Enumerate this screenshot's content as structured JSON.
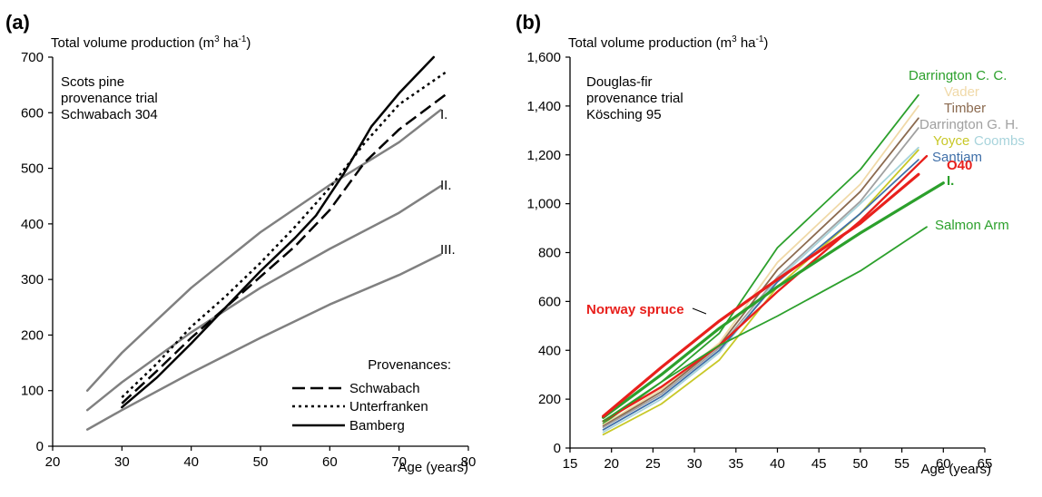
{
  "chart_data": [
    {
      "panel": "(a)",
      "type": "line",
      "ylabel": "Total volume production (m³ ha⁻¹)",
      "ylabel_parts": {
        "pre": "Total volume production (m",
        "sup1": "3",
        "mid": " ha",
        "sup2": "-1",
        "post": ")"
      },
      "xlabel": "Age (years)",
      "xlim": [
        20,
        80
      ],
      "ylim": [
        0,
        700
      ],
      "xticks": [
        20,
        30,
        40,
        50,
        60,
        70,
        80
      ],
      "yticks": [
        0,
        100,
        200,
        300,
        400,
        500,
        600,
        700
      ],
      "annotation": [
        "Scots pine",
        "provenance trial",
        "Schwabach 304"
      ],
      "legend_title": "Provenances:",
      "legend_placement": "bottom-right",
      "series": [
        {
          "name": "I.",
          "color": "#808080",
          "dash": "solid",
          "width": 2.5,
          "points": [
            [
              25,
              100
            ],
            [
              30,
              168
            ],
            [
              40,
              285
            ],
            [
              50,
              385
            ],
            [
              60,
              470
            ],
            [
              70,
              547
            ],
            [
              76,
              605
            ]
          ]
        },
        {
          "name": "II.",
          "color": "#808080",
          "dash": "solid",
          "width": 2.5,
          "points": [
            [
              25,
              65
            ],
            [
              30,
              115
            ],
            [
              40,
              205
            ],
            [
              50,
              285
            ],
            [
              60,
              355
            ],
            [
              70,
              420
            ],
            [
              76,
              468
            ]
          ]
        },
        {
          "name": "III.",
          "color": "#808080",
          "dash": "solid",
          "width": 2.5,
          "points": [
            [
              25,
              30
            ],
            [
              30,
              65
            ],
            [
              40,
              132
            ],
            [
              50,
              195
            ],
            [
              60,
              255
            ],
            [
              70,
              308
            ],
            [
              76,
              345
            ]
          ]
        },
        {
          "name": "Schwabach",
          "color": "#000000",
          "dash": "long-dash",
          "width": 2.5,
          "points": [
            [
              30,
              77
            ],
            [
              35,
              135
            ],
            [
              40,
              195
            ],
            [
              45,
              250
            ],
            [
              50,
              305
            ],
            [
              55,
              360
            ],
            [
              60,
              425
            ],
            [
              65,
              510
            ],
            [
              70,
              570
            ],
            [
              77,
              635
            ]
          ]
        },
        {
          "name": "Unterfranken",
          "color": "#000000",
          "dash": "dotted",
          "width": 2.5,
          "points": [
            [
              30,
              88
            ],
            [
              35,
              148
            ],
            [
              40,
              215
            ],
            [
              45,
              270
            ],
            [
              50,
              330
            ],
            [
              55,
              395
            ],
            [
              60,
              465
            ],
            [
              65,
              545
            ],
            [
              70,
              615
            ],
            [
              77,
              675
            ]
          ]
        },
        {
          "name": "Bamberg",
          "color": "#000000",
          "dash": "solid",
          "width": 2.5,
          "points": [
            [
              30,
              70
            ],
            [
              35,
              123
            ],
            [
              40,
              185
            ],
            [
              45,
              250
            ],
            [
              50,
              315
            ],
            [
              55,
              375
            ],
            [
              58,
              415
            ],
            [
              62,
              490
            ],
            [
              66,
              575
            ],
            [
              70,
              635
            ],
            [
              75,
              700
            ]
          ]
        }
      ]
    },
    {
      "panel": "(b)",
      "type": "line",
      "ylabel": "Total volume production (m³ ha⁻¹)",
      "ylabel_parts": {
        "pre": "Total volume production (m",
        "sup1": "3",
        "mid": " ha",
        "sup2": "-1",
        "post": ")"
      },
      "xlabel": "Age (years)",
      "xlim": [
        15,
        65
      ],
      "ylim": [
        0,
        1600
      ],
      "xticks": [
        15,
        20,
        25,
        30,
        35,
        40,
        45,
        50,
        55,
        60,
        65
      ],
      "yticks": [
        0,
        200,
        400,
        600,
        800,
        1000,
        1200,
        1400,
        1600
      ],
      "ytick_labels": [
        "0",
        "200",
        "400",
        "600",
        "800",
        "1,000",
        "1,200",
        "1,400",
        "1,600"
      ],
      "annotation": [
        "Douglas-fir",
        "provenance trial",
        "Kösching 95"
      ],
      "series": [
        {
          "name": "Darrington C. C.",
          "color": "#2ca02c",
          "width": 1.8,
          "points": [
            [
              19,
              100
            ],
            [
              26,
              270
            ],
            [
              33,
              470
            ],
            [
              40,
              820
            ],
            [
              50,
              1140
            ],
            [
              57,
              1445
            ]
          ]
        },
        {
          "name": "Vader",
          "color": "#f0d9a8",
          "width": 1.8,
          "points": [
            [
              19,
              95
            ],
            [
              26,
              240
            ],
            [
              33,
              430
            ],
            [
              40,
              760
            ],
            [
              50,
              1080
            ],
            [
              57,
              1400
            ]
          ]
        },
        {
          "name": "Timber",
          "color": "#8b6a4f",
          "width": 1.8,
          "points": [
            [
              19,
              90
            ],
            [
              26,
              230
            ],
            [
              33,
              420
            ],
            [
              40,
              730
            ],
            [
              50,
              1050
            ],
            [
              57,
              1350
            ]
          ]
        },
        {
          "name": "Darrington G. H.",
          "color": "#a0a0a0",
          "width": 1.8,
          "points": [
            [
              19,
              85
            ],
            [
              26,
              220
            ],
            [
              33,
              410
            ],
            [
              40,
              700
            ],
            [
              50,
              1010
            ],
            [
              57,
              1310
            ]
          ]
        },
        {
          "name": "Yoyce",
          "color": "#c8c828",
          "width": 1.8,
          "points": [
            [
              19,
              55
            ],
            [
              26,
              180
            ],
            [
              33,
              360
            ],
            [
              40,
              660
            ],
            [
              50,
              960
            ],
            [
              57,
              1220
            ]
          ]
        },
        {
          "name": "Coombs",
          "color": "#a8d4dc",
          "width": 1.8,
          "points": [
            [
              19,
              65
            ],
            [
              26,
              200
            ],
            [
              33,
              390
            ],
            [
              40,
              690
            ],
            [
              50,
              1000
            ],
            [
              57,
              1230
            ]
          ]
        },
        {
          "name": "Santiam",
          "color": "#3f6fa8",
          "width": 1.8,
          "points": [
            [
              19,
              75
            ],
            [
              26,
              210
            ],
            [
              33,
              400
            ],
            [
              40,
              680
            ],
            [
              50,
              960
            ],
            [
              57,
              1180
            ]
          ]
        },
        {
          "name": "O40",
          "color": "#e8201c",
          "width": 2.4,
          "points": [
            [
              19,
              110
            ],
            [
              26,
              250
            ],
            [
              33,
              420
            ],
            [
              40,
              640
            ],
            [
              50,
              930
            ],
            [
              58,
              1195
            ]
          ]
        },
        {
          "name": "I.",
          "color": "#2ca02c",
          "width": 3.2,
          "points": [
            [
              19,
              125
            ],
            [
              26,
              300
            ],
            [
              33,
              490
            ],
            [
              40,
              660
            ],
            [
              50,
              880
            ],
            [
              60,
              1085
            ]
          ]
        },
        {
          "name": "Salmon Arm",
          "color": "#2ca02c",
          "width": 1.8,
          "points": [
            [
              19,
              110
            ],
            [
              26,
              270
            ],
            [
              33,
              420
            ],
            [
              40,
              540
            ],
            [
              50,
              725
            ],
            [
              58,
              905
            ]
          ]
        },
        {
          "name": "Norway spruce",
          "color": "#e8201c",
          "width": 3.2,
          "points": [
            [
              19,
              130
            ],
            [
              26,
              330
            ],
            [
              33,
              520
            ],
            [
              40,
              690
            ],
            [
              50,
              920
            ],
            [
              57,
              1120
            ]
          ]
        }
      ],
      "labels_placement": "right end of lines",
      "norway_spruce_label_placement": "left, with leader line"
    }
  ]
}
